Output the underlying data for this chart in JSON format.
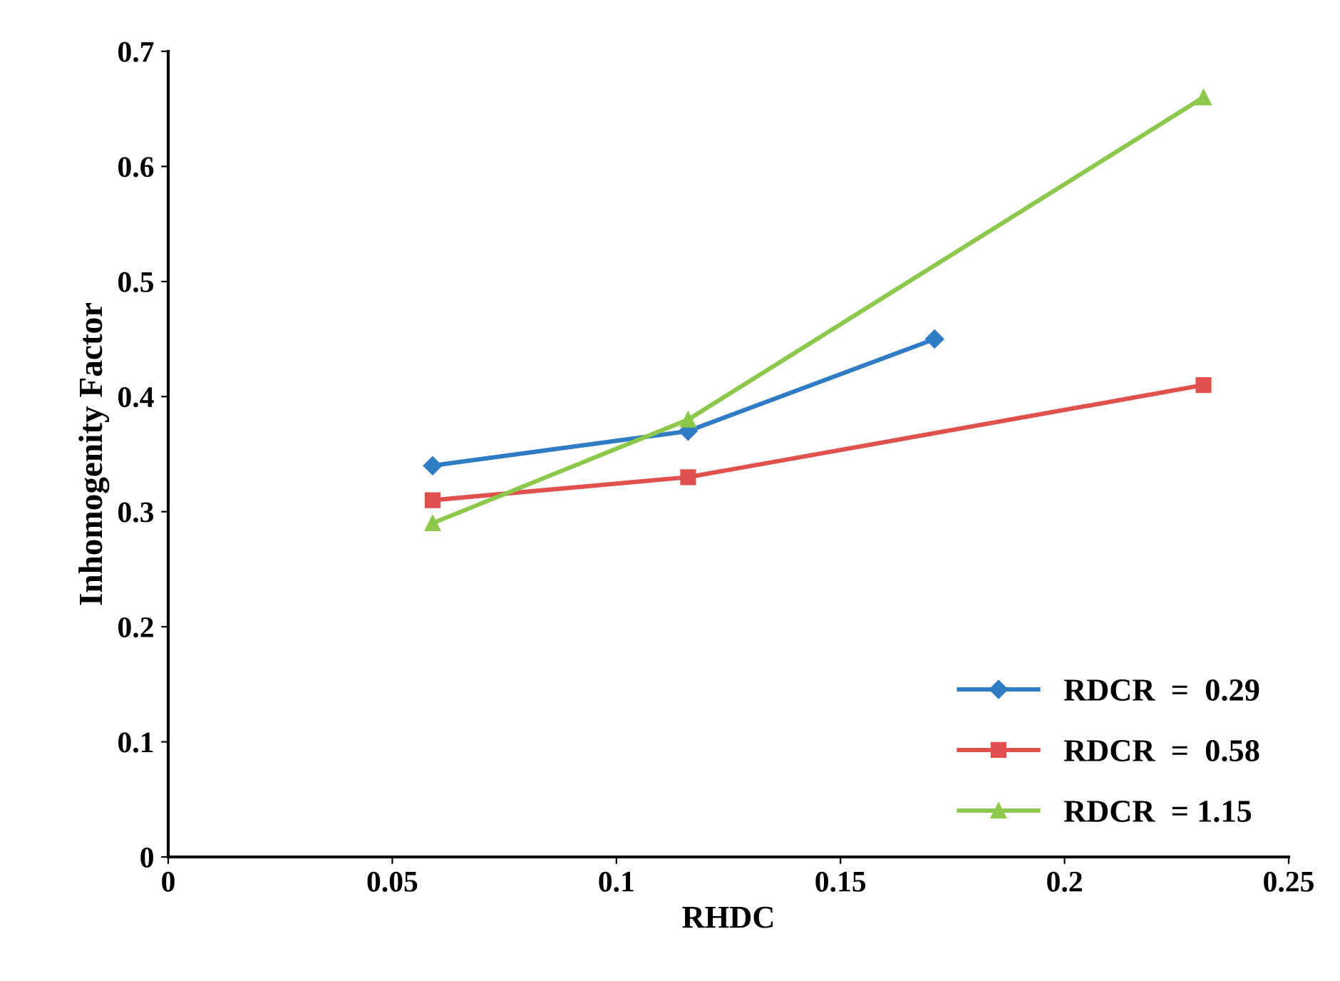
{
  "chart_data": {
    "type": "line",
    "xlabel": "RHDC",
    "ylabel": "Inhomogenity Factor",
    "xlim": [
      0,
      0.25
    ],
    "xticks": [
      0,
      0.05,
      0.1,
      0.15,
      0.2,
      0.25
    ],
    "ylim": [
      0,
      0.7
    ],
    "yticks": [
      0,
      0.1,
      0.2,
      0.3,
      0.4,
      0.5,
      0.6,
      0.7
    ],
    "grid": false,
    "legend": "bottom right",
    "series": [
      {
        "name": "RDCR  =  0.29",
        "color": "#2f7cc4",
        "marker": "diamond",
        "x": [
          0.059,
          0.116,
          0.171
        ],
        "values": [
          0.34,
          0.37,
          0.45
        ]
      },
      {
        "name": "RDCR  =  0.58",
        "color": "#e0504d",
        "marker": "square",
        "x": [
          0.059,
          0.116,
          0.231
        ],
        "values": [
          0.31,
          0.33,
          0.41
        ]
      },
      {
        "name": "RDCR  = 1.15",
        "color": "#8cc84b",
        "marker": "triangle",
        "x": [
          0.059,
          0.116,
          0.231
        ],
        "values": [
          0.29,
          0.38,
          0.66
        ]
      }
    ]
  }
}
